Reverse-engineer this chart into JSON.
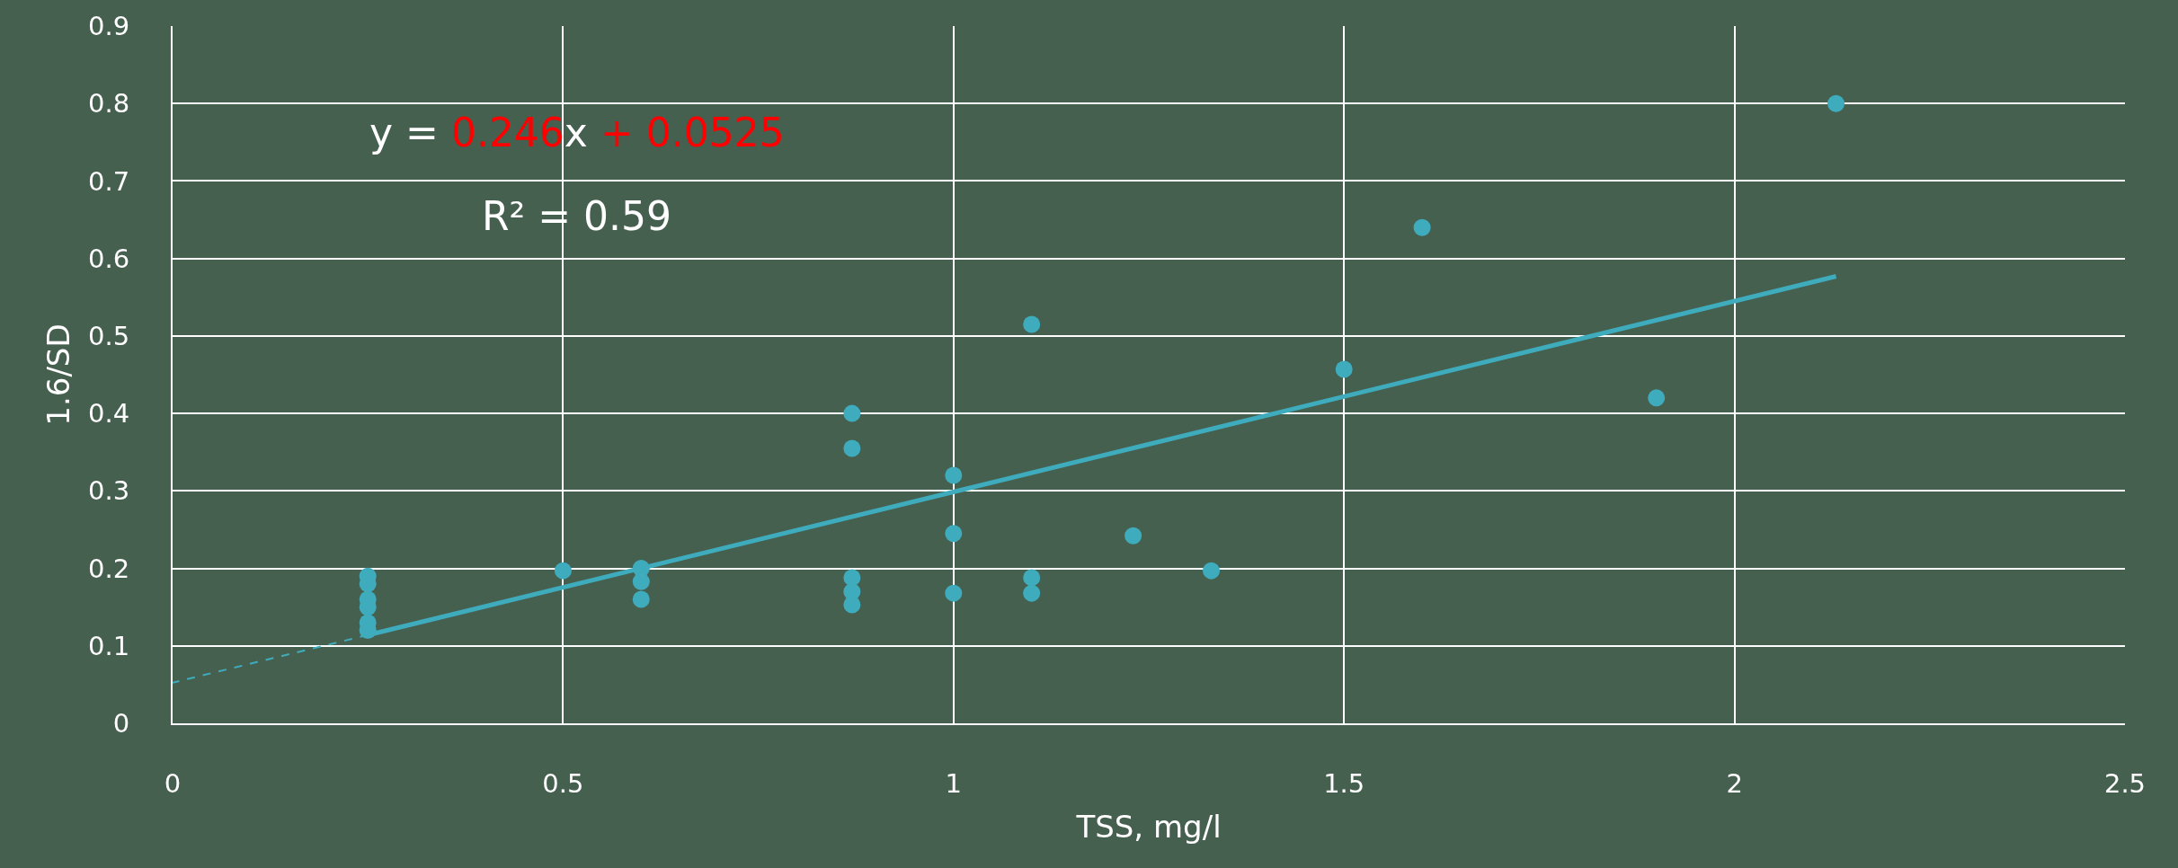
{
  "chart_data": {
    "type": "scatter",
    "xlabel": "TSS, mg/l",
    "ylabel": "1.6/SD",
    "xlim": [
      0,
      2.5
    ],
    "xticks": [
      0,
      0.5,
      1,
      1.5,
      2,
      2.5
    ],
    "ylim": [
      0,
      0.9
    ],
    "yticks": [
      0,
      0.1,
      0.2,
      0.3,
      0.4,
      0.5,
      0.6,
      0.7,
      0.8,
      0.9
    ],
    "grid": true,
    "marker": "circle",
    "annotations": [
      "y = 0.246x + 0.0525",
      "R² = 0.59"
    ],
    "series": [
      {
        "color": "#3eacbd",
        "x": [
          0.25,
          0.25,
          0.25,
          0.25,
          0.25,
          0.25,
          0.5,
          0.6,
          0.6,
          0.6,
          0.87,
          0.87,
          0.87,
          0.87,
          0.87,
          1.0,
          1.0,
          1.0,
          1.1,
          1.1,
          1.1,
          1.23,
          1.33,
          1.5,
          1.6,
          1.9,
          2.13
        ],
        "values": [
          0.19,
          0.18,
          0.16,
          0.15,
          0.13,
          0.12,
          0.197,
          0.2,
          0.183,
          0.16,
          0.4,
          0.355,
          0.188,
          0.17,
          0.153,
          0.32,
          0.245,
          0.168,
          0.515,
          0.188,
          0.168,
          0.242,
          0.197,
          0.457,
          0.64,
          0.42,
          0.8
        ]
      },
      {
        "type": "line",
        "color": "#3eacbd",
        "marker": "none",
        "line_style": "solid",
        "x": [
          0.25,
          2.13
        ],
        "values": [
          0.114,
          0.577
        ]
      },
      {
        "type": "line",
        "color": "#3eacbd",
        "marker": "none",
        "line_style": "dashed",
        "x": [
          0.25,
          0
        ],
        "values": [
          0.114,
          0.0525
        ]
      }
    ]
  }
}
